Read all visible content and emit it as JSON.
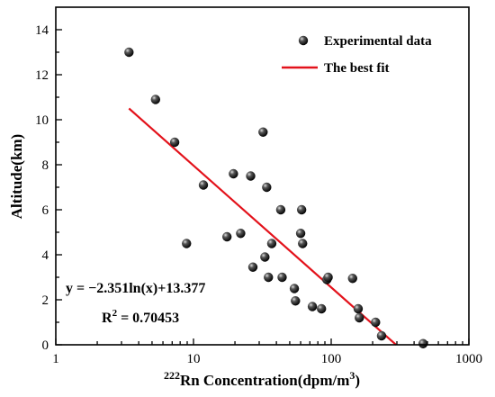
{
  "chart_data": {
    "type": "scatter",
    "xscale": "log",
    "xlim": [
      1,
      1000
    ],
    "ylim": [
      0,
      15
    ],
    "x_ticks": [
      1,
      10,
      100,
      1000
    ],
    "x_tick_labels": [
      "1",
      "10",
      "100",
      "1000"
    ],
    "y_ticks": [
      0,
      2,
      4,
      6,
      8,
      10,
      12,
      14
    ],
    "y_tick_labels": [
      "0",
      "2",
      "4",
      "6",
      "8",
      "10",
      "12",
      "14"
    ],
    "xlabel_parts": {
      "sup": "222",
      "main": "Rn Concentration",
      "unit": "(dpm/m",
      "unit_sup": "3",
      "close": ")"
    },
    "ylabel": "Altitude(km)",
    "legend_position": "top-right",
    "series": [
      {
        "name": "Experimental data",
        "kind": "points",
        "color": "#111111",
        "points": [
          [
            3.4,
            13.0
          ],
          [
            5.3,
            10.9
          ],
          [
            7.3,
            9.0
          ],
          [
            8.9,
            4.5
          ],
          [
            11.8,
            7.1
          ],
          [
            17.5,
            4.8
          ],
          [
            19.5,
            7.6
          ],
          [
            22,
            4.95
          ],
          [
            26,
            7.5
          ],
          [
            27,
            3.45
          ],
          [
            32,
            9.45
          ],
          [
            33,
            3.9
          ],
          [
            34,
            7.0
          ],
          [
            35,
            3.0
          ],
          [
            37,
            4.5
          ],
          [
            43,
            6.0
          ],
          [
            44,
            3.0
          ],
          [
            54,
            2.5
          ],
          [
            55,
            1.95
          ],
          [
            60,
            4.95
          ],
          [
            61,
            6.0
          ],
          [
            62,
            4.5
          ],
          [
            73,
            1.7
          ],
          [
            85,
            1.6
          ],
          [
            93,
            2.9
          ],
          [
            95,
            3.0
          ],
          [
            143,
            2.95
          ],
          [
            157,
            1.6
          ],
          [
            160,
            1.2
          ],
          [
            210,
            1.0
          ],
          [
            232,
            0.4
          ],
          [
            465,
            0.05
          ]
        ]
      },
      {
        "name": "The best fit",
        "kind": "line",
        "color": "#e3121b",
        "x": [
          3.4,
          296
        ]
      }
    ],
    "fit": {
      "a": -2.351,
      "b": 13.377
    },
    "annotations": {
      "equation": "y = −2.351ln(x)+13.377",
      "r2_label": "R",
      "r2_sup": "2",
      "r2_value": " = 0.70453"
    }
  }
}
